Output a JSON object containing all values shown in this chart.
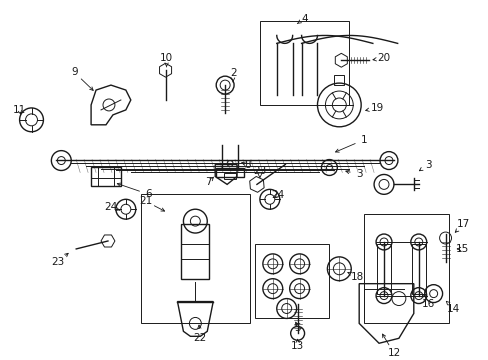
{
  "bg_color": "#ffffff",
  "line_color": "#1a1a1a",
  "fig_width": 4.89,
  "fig_height": 3.6,
  "dpi": 100,
  "gray": "#888888",
  "darkgray": "#555555"
}
